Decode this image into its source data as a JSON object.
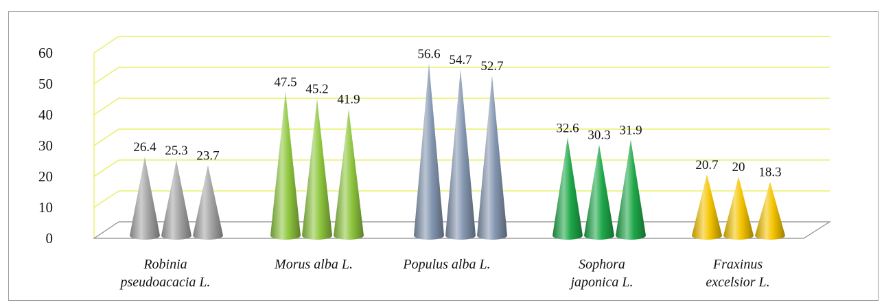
{
  "chart_data": {
    "type": "bar",
    "bar_shape": "cone",
    "categories": [
      [
        "Robinia",
        "pseudoacacia  L."
      ],
      [
        "Morus alba L."
      ],
      [
        "Populus alba  L."
      ],
      [
        "Sophora",
        "japonica L."
      ],
      [
        "Fraxinus",
        "excelsior L."
      ]
    ],
    "series": [
      {
        "values": [
          26.4,
          47.5,
          56.6,
          32.6,
          20.7
        ]
      },
      {
        "values": [
          25.3,
          45.2,
          54.7,
          30.3,
          20
        ]
      },
      {
        "values": [
          23.7,
          41.9,
          52.7,
          31.9,
          18.3
        ]
      }
    ],
    "category_colors": [
      "#a6a6a6",
      "#8fc63f",
      "#8496b0",
      "#1fa84a",
      "#f5c400"
    ],
    "ylim": [
      0,
      60
    ],
    "yticks": [
      0,
      10,
      20,
      30,
      40,
      50,
      60
    ],
    "grid": true,
    "gridline_color": "#e9f06a",
    "legend": "none",
    "title": "",
    "xlabel": "",
    "ylabel": ""
  }
}
